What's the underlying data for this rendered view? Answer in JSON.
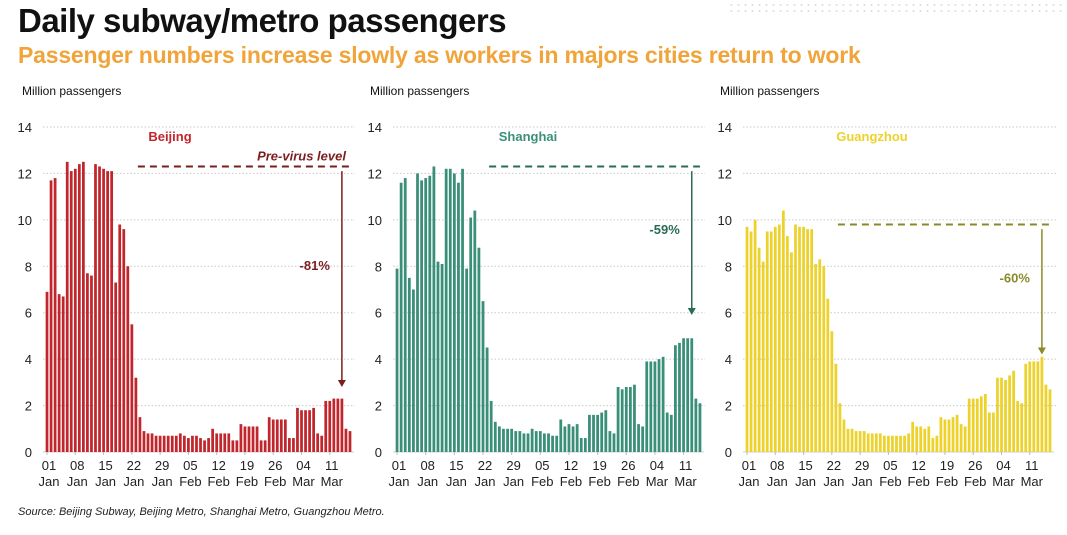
{
  "header": {
    "title": "Daily subway/metro passengers",
    "subtitle": "Passenger numbers increase slowly as workers in majors cities return to work"
  },
  "source": "Source: Beijing Subway, Beijing Metro, Shanghai Metro, Guangzhou Metro.",
  "chart_data": [
    {
      "type": "bar",
      "title": "Beijing",
      "ylabel": "Million passengers",
      "xlabel": "",
      "ylim": [
        0,
        14
      ],
      "yticks": [
        0,
        2,
        4,
        6,
        8,
        10,
        12,
        14
      ],
      "grid": true,
      "color": "#c0262c",
      "accent": "#7a1f1f",
      "xtick_labels": [
        [
          "01",
          "Jan"
        ],
        [
          "08",
          "Jan"
        ],
        [
          "15",
          "Jan"
        ],
        [
          "22",
          "Jan"
        ],
        [
          "29",
          "Jan"
        ],
        [
          "05",
          "Feb"
        ],
        [
          "12",
          "Feb"
        ],
        [
          "19",
          "Feb"
        ],
        [
          "26",
          "Feb"
        ],
        [
          "04",
          "Mar"
        ],
        [
          "11",
          "Mar"
        ]
      ],
      "xtick_days": [
        0,
        7,
        14,
        21,
        28,
        35,
        42,
        49,
        56,
        63,
        70
      ],
      "values": [
        6.9,
        11.7,
        11.8,
        6.8,
        6.7,
        12.5,
        12.1,
        12.2,
        12.4,
        12.5,
        7.7,
        7.6,
        12.4,
        12.3,
        12.2,
        12.1,
        12.1,
        7.3,
        9.8,
        9.6,
        8.0,
        5.5,
        3.2,
        1.5,
        0.9,
        0.8,
        0.8,
        0.7,
        0.7,
        0.7,
        0.7,
        0.7,
        0.7,
        0.8,
        0.7,
        0.6,
        0.7,
        0.7,
        0.6,
        0.5,
        0.6,
        1.0,
        0.8,
        0.8,
        0.8,
        0.8,
        0.5,
        0.5,
        1.2,
        1.1,
        1.1,
        1.1,
        1.1,
        0.5,
        0.5,
        1.5,
        1.4,
        1.4,
        1.4,
        1.4,
        0.6,
        0.6,
        1.9,
        1.8,
        1.8,
        1.8,
        1.9,
        0.8,
        0.7,
        2.2,
        2.2,
        2.3,
        2.3,
        2.3,
        1.0,
        0.9
      ],
      "reference": {
        "label": "Pre-virus level",
        "value": 12.3
      },
      "annotation": {
        "label": "-81%",
        "arrow_from": 12.1,
        "arrow_to": 2.8
      }
    },
    {
      "type": "bar",
      "title": "Shanghai",
      "ylabel": "Million passengers",
      "xlabel": "",
      "ylim": [
        0,
        14
      ],
      "yticks": [
        0,
        2,
        4,
        6,
        8,
        10,
        12,
        14
      ],
      "grid": true,
      "color": "#3a8f78",
      "accent": "#2a6b58",
      "xtick_labels": [
        [
          "01",
          "Jan"
        ],
        [
          "08",
          "Jan"
        ],
        [
          "15",
          "Jan"
        ],
        [
          "22",
          "Jan"
        ],
        [
          "29",
          "Jan"
        ],
        [
          "05",
          "Feb"
        ],
        [
          "12",
          "Feb"
        ],
        [
          "19",
          "Feb"
        ],
        [
          "26",
          "Feb"
        ],
        [
          "04",
          "Mar"
        ],
        [
          "11",
          "Mar"
        ]
      ],
      "xtick_days": [
        0,
        7,
        14,
        21,
        28,
        35,
        42,
        49,
        56,
        63,
        70
      ],
      "values": [
        7.9,
        11.6,
        11.8,
        7.5,
        7.0,
        12.0,
        11.7,
        11.8,
        11.9,
        12.3,
        8.2,
        8.1,
        12.2,
        12.2,
        12.0,
        11.6,
        12.2,
        7.9,
        10.1,
        10.4,
        8.8,
        6.5,
        4.5,
        2.2,
        1.3,
        1.1,
        1.0,
        1.0,
        1.0,
        0.9,
        0.9,
        0.8,
        0.8,
        1.0,
        0.9,
        0.9,
        0.8,
        0.8,
        0.7,
        0.7,
        1.4,
        1.1,
        1.2,
        1.1,
        1.2,
        0.6,
        0.6,
        1.6,
        1.6,
        1.6,
        1.7,
        1.8,
        0.9,
        0.8,
        2.8,
        2.7,
        2.8,
        2.8,
        2.9,
        1.2,
        1.1,
        3.9,
        3.9,
        3.9,
        4.0,
        4.1,
        1.7,
        1.6,
        4.6,
        4.7,
        4.9,
        4.9,
        4.9,
        2.3,
        2.1
      ],
      "reference": {
        "label": "",
        "value": 12.3
      },
      "annotation": {
        "label": "-59%",
        "arrow_from": 12.1,
        "arrow_to": 5.9
      }
    },
    {
      "type": "bar",
      "title": "Guangzhou",
      "ylabel": "Million passengers",
      "xlabel": "",
      "ylim": [
        0,
        14
      ],
      "yticks": [
        0,
        2,
        4,
        6,
        8,
        10,
        12,
        14
      ],
      "grid": true,
      "color": "#ecd22a",
      "accent": "#8a8a2a",
      "xtick_labels": [
        [
          "01",
          "Jan"
        ],
        [
          "08",
          "Jan"
        ],
        [
          "15",
          "Jan"
        ],
        [
          "22",
          "Jan"
        ],
        [
          "29",
          "Jan"
        ],
        [
          "05",
          "Feb"
        ],
        [
          "12",
          "Feb"
        ],
        [
          "19",
          "Feb"
        ],
        [
          "26",
          "Feb"
        ],
        [
          "04",
          "Mar"
        ],
        [
          "11",
          "Mar"
        ]
      ],
      "xtick_days": [
        0,
        7,
        14,
        21,
        28,
        35,
        42,
        49,
        56,
        63,
        70
      ],
      "values": [
        9.7,
        9.5,
        10.0,
        8.8,
        8.2,
        9.5,
        9.5,
        9.7,
        9.8,
        10.4,
        9.3,
        8.6,
        9.8,
        9.7,
        9.7,
        9.6,
        9.6,
        8.1,
        8.3,
        8.0,
        6.6,
        5.2,
        3.8,
        2.1,
        1.4,
        1.0,
        1.0,
        0.9,
        0.9,
        0.9,
        0.8,
        0.8,
        0.8,
        0.8,
        0.7,
        0.7,
        0.7,
        0.7,
        0.7,
        0.7,
        0.8,
        1.3,
        1.1,
        1.1,
        1.0,
        1.1,
        0.6,
        0.7,
        1.5,
        1.4,
        1.4,
        1.5,
        1.6,
        1.2,
        1.1,
        2.3,
        2.3,
        2.3,
        2.4,
        2.5,
        1.7,
        1.7,
        3.2,
        3.2,
        3.1,
        3.3,
        3.5,
        2.2,
        2.1,
        3.8,
        3.9,
        3.9,
        3.9,
        4.1,
        2.9,
        2.7
      ],
      "reference": {
        "label": "",
        "value": 9.8
      },
      "annotation": {
        "label": "-60%",
        "arrow_from": 9.6,
        "arrow_to": 4.2
      }
    }
  ]
}
